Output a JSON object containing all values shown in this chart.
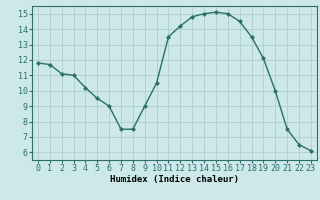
{
  "x": [
    0,
    1,
    2,
    3,
    4,
    5,
    6,
    7,
    8,
    9,
    10,
    11,
    12,
    13,
    14,
    15,
    16,
    17,
    18,
    19,
    20,
    21,
    22,
    23
  ],
  "y": [
    11.8,
    11.7,
    11.1,
    11.0,
    10.2,
    9.5,
    9.0,
    7.5,
    7.5,
    9.0,
    10.5,
    13.5,
    14.2,
    14.8,
    15.0,
    15.1,
    15.0,
    14.5,
    13.5,
    12.1,
    10.0,
    7.5,
    6.5,
    6.1
  ],
  "line_color": "#2d6e6e",
  "marker": "D",
  "markersize": 2.0,
  "linewidth": 1.0,
  "bg_color": "#cce8e8",
  "grid_color": "#b0cccc",
  "xlabel": "Humidex (Indice chaleur)",
  "xlim": [
    -0.5,
    23.5
  ],
  "ylim": [
    5.5,
    15.5
  ],
  "xticks": [
    0,
    1,
    2,
    3,
    4,
    5,
    6,
    7,
    8,
    9,
    10,
    11,
    12,
    13,
    14,
    15,
    16,
    17,
    18,
    19,
    20,
    21,
    22,
    23
  ],
  "yticks": [
    6,
    7,
    8,
    9,
    10,
    11,
    12,
    13,
    14,
    15
  ],
  "xlabel_fontsize": 6.5,
  "tick_fontsize": 6.0
}
